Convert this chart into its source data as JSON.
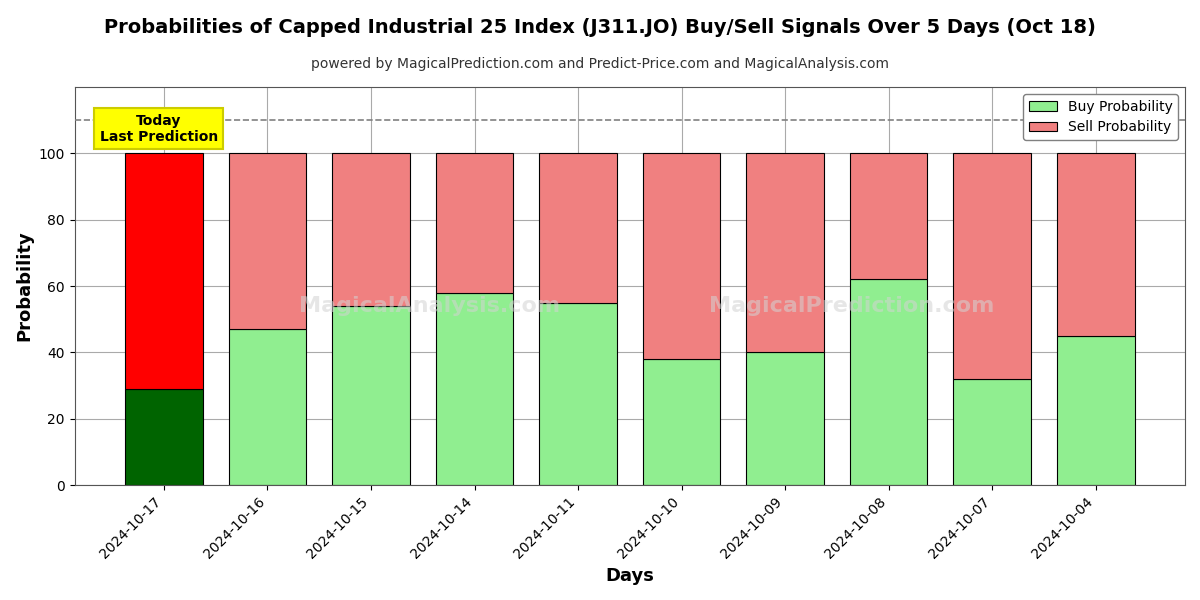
{
  "title": "Probabilities of Capped Industrial 25 Index (J311.JO) Buy/Sell Signals Over 5 Days (Oct 18)",
  "subtitle": "powered by MagicalPrediction.com and Predict-Price.com and MagicalAnalysis.com",
  "xlabel": "Days",
  "ylabel": "Probability",
  "categories": [
    "2024-10-17",
    "2024-10-16",
    "2024-10-15",
    "2024-10-14",
    "2024-10-11",
    "2024-10-10",
    "2024-10-09",
    "2024-10-08",
    "2024-10-07",
    "2024-10-04"
  ],
  "buy_values": [
    29,
    47,
    54,
    58,
    55,
    38,
    40,
    62,
    32,
    45
  ],
  "sell_values": [
    71,
    53,
    46,
    42,
    45,
    62,
    60,
    38,
    68,
    55
  ],
  "buy_colors": [
    "#006400",
    "#90EE90",
    "#90EE90",
    "#90EE90",
    "#90EE90",
    "#90EE90",
    "#90EE90",
    "#90EE90",
    "#90EE90",
    "#90EE90"
  ],
  "sell_colors": [
    "#FF0000",
    "#F08080",
    "#F08080",
    "#F08080",
    "#F08080",
    "#F08080",
    "#F08080",
    "#F08080",
    "#F08080",
    "#F08080"
  ],
  "today_annotation": "Today\nLast Prediction",
  "today_annotation_bg": "#FFFF00",
  "legend_buy_color": "#90EE90",
  "legend_sell_color": "#F08080",
  "legend_buy_label": "Buy Probability",
  "legend_sell_label": "Sell Probability",
  "dashed_line_y": 110,
  "ylim": [
    0,
    120
  ],
  "yticks": [
    0,
    20,
    40,
    60,
    80,
    100
  ],
  "bar_edge_color": "#000000",
  "bar_linewidth": 0.8,
  "background_color": "#ffffff",
  "grid_color": "#aaaaaa",
  "title_fontsize": 14,
  "subtitle_fontsize": 10
}
